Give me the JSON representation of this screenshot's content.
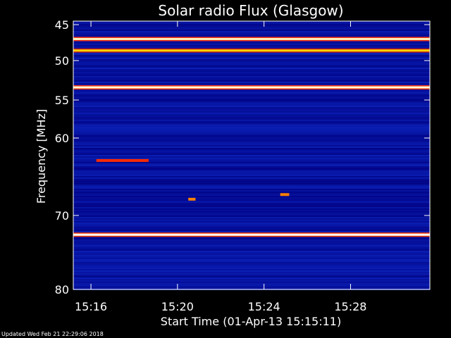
{
  "chart_data": {
    "type": "heatmap",
    "title": "Solar radio Flux (Glasgow)",
    "xlabel": "Start Time (01-Apr-13 15:15:11)",
    "ylabel": "Frequency [MHz]",
    "x_ticks": [
      "15:16",
      "15:20",
      "15:24",
      "15:28"
    ],
    "y_ticks": [
      45,
      50,
      55,
      60,
      70,
      80
    ],
    "ylim": [
      45,
      80
    ],
    "x_range": [
      "15:15:11",
      "15:31:40"
    ],
    "colormap": [
      "#000080",
      "#0a1fb4",
      "#7a0a32",
      "#ff2a00",
      "#ffd400",
      "#ffffff"
    ],
    "features": [
      {
        "kind": "band",
        "freq_mhz": 47.0,
        "intensity": 0.95
      },
      {
        "kind": "band",
        "freq_mhz": 48.6,
        "intensity": 0.8
      },
      {
        "kind": "band",
        "freq_mhz": 53.4,
        "intensity": 0.97
      },
      {
        "kind": "band",
        "freq_mhz": 72.6,
        "intensity": 1.0
      },
      {
        "kind": "burst",
        "freq_mhz": 62.9,
        "start": "15:16:15",
        "end": "15:18:40",
        "intensity": 0.6
      },
      {
        "kind": "burst",
        "freq_mhz": 67.9,
        "start": "15:20:30",
        "end": "15:20:50",
        "intensity": 0.7
      },
      {
        "kind": "burst",
        "freq_mhz": 67.3,
        "start": "15:24:45",
        "end": "15:25:10",
        "intensity": 0.7
      }
    ]
  },
  "footer": {
    "updated": "Updated Wed Feb 21 22:29:06 2018"
  }
}
